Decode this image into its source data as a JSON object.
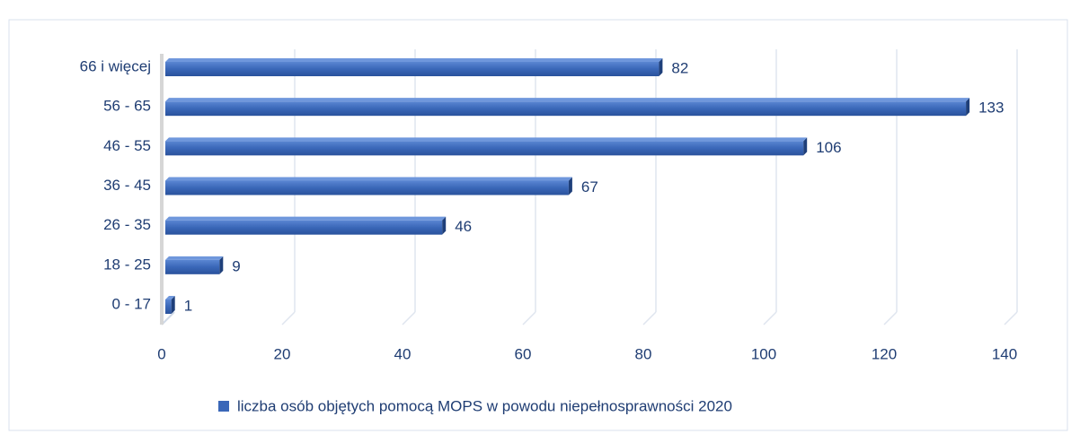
{
  "chart_data": {
    "type": "bar",
    "orientation": "horizontal",
    "categories": [
      "0 - 17",
      "18 - 25",
      "26 - 35",
      "36 - 45",
      "46 - 55",
      "56 - 65",
      "66 i więcej"
    ],
    "series": [
      {
        "name": "liczba osób objętych pomocą MOPS w powodu niepełnosprawności 2020",
        "color": "#3a67b8",
        "values": [
          1,
          9,
          46,
          67,
          106,
          133,
          82
        ]
      }
    ],
    "xlim": [
      0,
      140
    ],
    "xticks": [
      0,
      20,
      40,
      60,
      80,
      100,
      120,
      140
    ],
    "grid": true,
    "legend": "bottom"
  }
}
